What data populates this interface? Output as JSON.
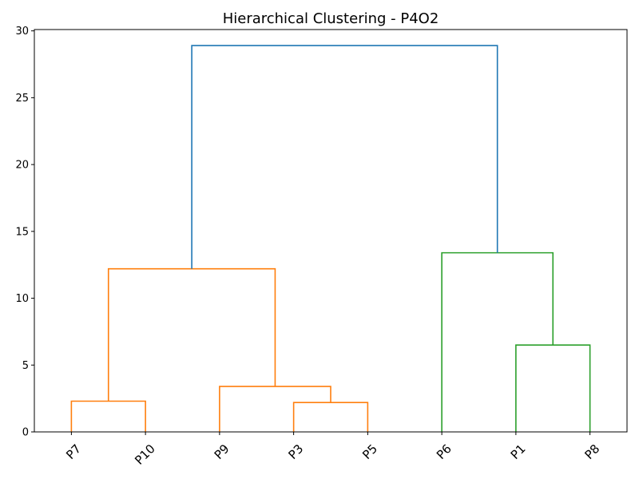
{
  "chart_data": {
    "type": "dendrogram",
    "title": "Hierarchical Clustering - P4O2",
    "xlabel": "",
    "ylabel": "",
    "ylim": [
      0,
      30.1
    ],
    "yticks": [
      0,
      5,
      10,
      15,
      20,
      25,
      30
    ],
    "leaves": [
      "P7",
      "P10",
      "P9",
      "P3",
      "P5",
      "P6",
      "P1",
      "P8"
    ],
    "grid": false,
    "links": [
      {
        "left": "leaf:0",
        "right": "leaf:1",
        "height": 2.3,
        "color": "#ff7f0e"
      },
      {
        "left": "leaf:3",
        "right": "leaf:4",
        "height": 2.2,
        "color": "#ff7f0e"
      },
      {
        "left": "leaf:2",
        "right": "link:1",
        "height": 3.4,
        "color": "#ff7f0e"
      },
      {
        "left": "link:0",
        "right": "link:2",
        "height": 12.2,
        "color": "#ff7f0e"
      },
      {
        "left": "leaf:6",
        "right": "leaf:7",
        "height": 6.5,
        "color": "#2ca02c"
      },
      {
        "left": "leaf:5",
        "right": "link:4",
        "height": 13.4,
        "color": "#2ca02c"
      },
      {
        "left": "link:3",
        "right": "link:5",
        "height": 28.9,
        "color": "#1f77b4"
      }
    ]
  }
}
